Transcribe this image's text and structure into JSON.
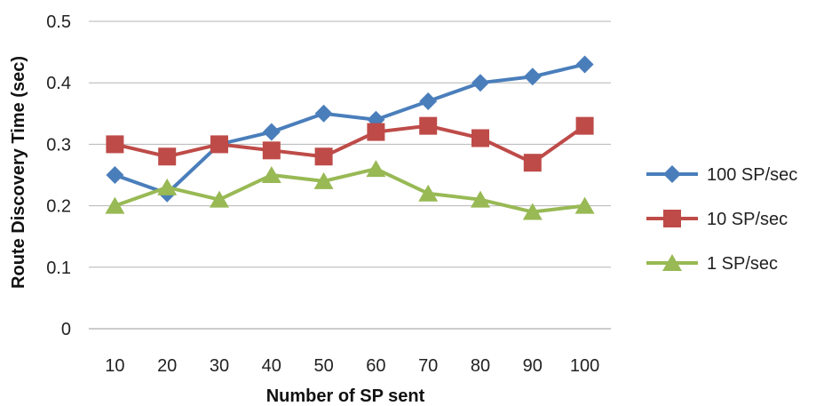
{
  "chart_data": {
    "type": "line",
    "title": "",
    "xlabel": "Number of SP sent",
    "ylabel": "Route Discovery Time (sec)",
    "categories": [
      "10",
      "20",
      "30",
      "40",
      "50",
      "60",
      "70",
      "80",
      "90",
      "100"
    ],
    "ylim": [
      0,
      0.5
    ],
    "yticks": [
      "0",
      "0.1",
      "0.2",
      "0.3",
      "0.4",
      "0.5"
    ],
    "grid": "horizontal",
    "legend_position": "right",
    "series": [
      {
        "name": "100 SP/sec",
        "color": "#4a7ebb",
        "marker": "diamond",
        "values": [
          0.25,
          0.22,
          0.3,
          0.32,
          0.35,
          0.34,
          0.37,
          0.4,
          0.41,
          0.43
        ]
      },
      {
        "name": "10 SP/sec",
        "color": "#be4b48",
        "marker": "square",
        "values": [
          0.3,
          0.28,
          0.3,
          0.29,
          0.28,
          0.32,
          0.33,
          0.31,
          0.27,
          0.33
        ]
      },
      {
        "name": "1 SP/sec",
        "color": "#98b954",
        "marker": "triangle",
        "values": [
          0.2,
          0.23,
          0.21,
          0.25,
          0.24,
          0.26,
          0.22,
          0.21,
          0.19,
          0.2
        ]
      }
    ]
  }
}
